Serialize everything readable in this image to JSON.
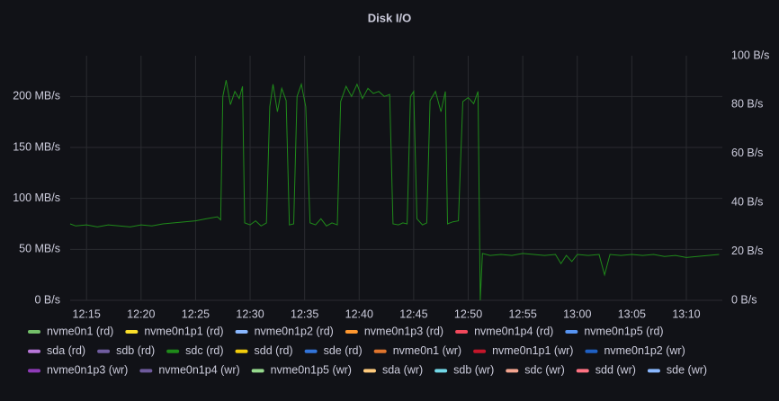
{
  "chart_data": {
    "type": "line",
    "title": "Disk I/O",
    "x": [
      733.5,
      734,
      735,
      736,
      737,
      738,
      739,
      740,
      741,
      742,
      743,
      744,
      745,
      746,
      747,
      747.3,
      747.5,
      747.8,
      748.2,
      748.6,
      749,
      749.3,
      749.5,
      750,
      750.5,
      751,
      751.5,
      751.8,
      752.1,
      752.5,
      752.9,
      753.3,
      753.6,
      754,
      754.3,
      754.7,
      755.1,
      755.5,
      756,
      756.5,
      757,
      757.5,
      758,
      758.3,
      758.8,
      759.3,
      759.8,
      760.3,
      760.8,
      761.3,
      761.8,
      762.3,
      762.8,
      763.1,
      763.6,
      764,
      764.4,
      764.7,
      765,
      765.3,
      765.8,
      766.2,
      766.5,
      767,
      767.5,
      767.9,
      768.1,
      768.6,
      769.1,
      769.5,
      770,
      770.5,
      770.9,
      771.1,
      771.3,
      772,
      773,
      774,
      775,
      776,
      777,
      778,
      778.5,
      779,
      779.5,
      780,
      781,
      782,
      782.5,
      783,
      784,
      785,
      786,
      787,
      788,
      789,
      790,
      791,
      792,
      793
    ],
    "series": [
      {
        "name": "nvme0n1 (rd)",
        "color": "#73bf69"
      },
      {
        "name": "nvme0n1p1 (rd)",
        "color": "#fade2a"
      },
      {
        "name": "nvme0n1p2 (rd)",
        "color": "#8ab8ff"
      },
      {
        "name": "nvme0n1p3 (rd)",
        "color": "#ff9830"
      },
      {
        "name": "nvme0n1p4 (rd)",
        "color": "#f2495c"
      },
      {
        "name": "nvme0n1p5 (rd)",
        "color": "#5794f2"
      },
      {
        "name": "sda (rd)",
        "color": "#b877d9"
      },
      {
        "name": "sdb (rd)",
        "color": "#705da0"
      },
      {
        "name": "sdc (rd)",
        "color": "#1f8a1a",
        "values": [
          75,
          73,
          74,
          72,
          74,
          73,
          72,
          74,
          73,
          75,
          76,
          77,
          78,
          80,
          82,
          79,
          200,
          216,
          192,
          205,
          198,
          210,
          76,
          74,
          78,
          73,
          76,
          190,
          212,
          185,
          208,
          196,
          74,
          75,
          200,
          212,
          190,
          76,
          74,
          80,
          73,
          76,
          74,
          195,
          210,
          200,
          212,
          198,
          208,
          203,
          205,
          200,
          202,
          75,
          74,
          76,
          75,
          200,
          205,
          80,
          74,
          76,
          196,
          205,
          185,
          205,
          75,
          77,
          78,
          195,
          199,
          193,
          205,
          0,
          46,
          44,
          45,
          44,
          46,
          45,
          44,
          45,
          36,
          44,
          38,
          45,
          44,
          45,
          25,
          45,
          44,
          45,
          44,
          45,
          43,
          44,
          42,
          43,
          44,
          45
        ]
      },
      {
        "name": "sdd (rd)",
        "color": "#f2cc0c"
      },
      {
        "name": "sde (rd)",
        "color": "#3274d9"
      },
      {
        "name": "nvme0n1 (wr)",
        "color": "#e0752d"
      },
      {
        "name": "nvme0n1p1 (wr)",
        "color": "#c4162a"
      },
      {
        "name": "nvme0n1p2 (wr)",
        "color": "#1f60c4"
      },
      {
        "name": "nvme0n1p3 (wr)",
        "color": "#8f3bb8"
      },
      {
        "name": "nvme0n1p4 (wr)",
        "color": "#6e5a9c"
      },
      {
        "name": "nvme0n1p5 (wr)",
        "color": "#96d98d"
      },
      {
        "name": "sda (wr)",
        "color": "#ffcb7d"
      },
      {
        "name": "sdb (wr)",
        "color": "#73d8e8"
      },
      {
        "name": "sdc (wr)",
        "color": "#f4a590"
      },
      {
        "name": "sdd (wr)",
        "color": "#ff7383"
      },
      {
        "name": "sde (wr)",
        "color": "#8ab8ff"
      }
    ],
    "xlim": [
      733.5,
      793.3
    ],
    "xticks": [
      {
        "value": 735,
        "label": "12:15"
      },
      {
        "value": 740,
        "label": "12:20"
      },
      {
        "value": 745,
        "label": "12:25"
      },
      {
        "value": 750,
        "label": "12:30"
      },
      {
        "value": 755,
        "label": "12:35"
      },
      {
        "value": 760,
        "label": "12:40"
      },
      {
        "value": 765,
        "label": "12:45"
      },
      {
        "value": 770,
        "label": "12:50"
      },
      {
        "value": 775,
        "label": "12:55"
      },
      {
        "value": 780,
        "label": "13:00"
      },
      {
        "value": 785,
        "label": "13:05"
      },
      {
        "value": 790,
        "label": "13:10"
      }
    ],
    "ylim": [
      0,
      240
    ],
    "yticks": [
      {
        "value": 0,
        "label": "0 B/s"
      },
      {
        "value": 50,
        "label": "50 MB/s"
      },
      {
        "value": 100,
        "label": "100 MB/s"
      },
      {
        "value": 150,
        "label": "150 MB/s"
      },
      {
        "value": 200,
        "label": "200 MB/s"
      }
    ],
    "y2lim": [
      0,
      100
    ],
    "y2ticks": [
      {
        "value": 0,
        "label": "0 B/s"
      },
      {
        "value": 20,
        "label": "20 B/s"
      },
      {
        "value": 40,
        "label": "40 B/s"
      },
      {
        "value": 60,
        "label": "60 B/s"
      },
      {
        "value": 80,
        "label": "80 B/s"
      },
      {
        "value": 100,
        "label": "100 B/s"
      }
    ],
    "grid": true
  }
}
